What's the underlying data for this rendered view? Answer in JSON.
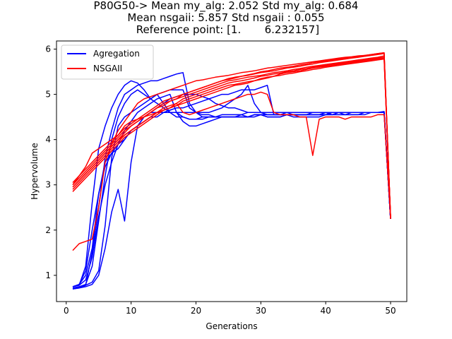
{
  "chart_data": {
    "type": "line",
    "title_lines": [
      "P80G50-> Mean my_alg: 2.052 Std my_alg: 0.684",
      "Mean nsgaii: 5.857 Std nsgaii : 0.055",
      " Reference point: [1.       6.232157]"
    ],
    "xlabel": "Generations",
    "ylabel": "Hypervolume",
    "xlim": [
      -1.5,
      52.5
    ],
    "ylim": [
      0.42,
      6.18
    ],
    "xticks": [
      0,
      10,
      20,
      30,
      40,
      50
    ],
    "yticks": [
      1,
      2,
      3,
      4,
      5,
      6
    ],
    "grid": false,
    "legend": {
      "placement": "upper-left",
      "entries": [
        {
          "label": "Agregation",
          "color": "#0000ff"
        },
        {
          "label": "NSGAII",
          "color": "#ff0000"
        }
      ]
    },
    "series_groups": [
      {
        "label": "Agregation",
        "color": "#0000ff",
        "runs": [
          [
            0.75,
            0.78,
            1.2,
            2.6,
            3.8,
            4.3,
            4.7,
            5.0,
            5.2,
            5.3,
            5.25,
            5.1,
            4.9,
            5.0,
            4.8,
            4.6,
            4.5,
            4.5,
            4.45,
            4.45,
            4.5,
            4.5,
            4.5,
            4.55,
            4.55,
            4.55,
            4.55,
            4.5,
            4.55,
            4.55,
            4.55,
            4.55,
            4.55,
            4.6,
            4.55,
            4.55,
            4.55,
            4.55,
            4.55,
            4.6,
            4.55,
            4.6,
            4.55,
            4.6,
            4.6,
            4.6,
            4.6,
            4.6,
            4.6,
            2.25
          ],
          [
            0.72,
            0.74,
            0.78,
            1.5,
            2.5,
            3.6,
            4.2,
            4.7,
            5.0,
            5.1,
            5.2,
            5.25,
            5.3,
            5.3,
            5.35,
            5.4,
            5.45,
            5.48,
            4.8,
            4.6,
            4.55,
            4.55,
            4.5,
            4.5,
            4.5,
            4.5,
            4.5,
            4.5,
            4.55,
            4.55,
            4.5,
            4.5,
            4.5,
            4.55,
            4.55,
            4.55,
            4.55,
            4.55,
            4.55,
            4.6,
            4.6,
            4.6,
            4.6,
            4.6,
            4.6,
            4.6,
            4.6,
            4.6,
            4.6,
            2.25
          ],
          [
            0.7,
            0.72,
            0.78,
            0.85,
            1.1,
            2.1,
            3.6,
            4.3,
            4.5,
            4.6,
            4.7,
            4.8,
            4.9,
            5.0,
            5.05,
            5.1,
            5.1,
            5.1,
            4.7,
            4.6,
            4.5,
            4.5,
            4.5,
            4.5,
            4.5,
            4.5,
            4.5,
            4.5,
            4.55,
            4.55,
            4.5,
            4.5,
            4.5,
            4.55,
            4.55,
            4.55,
            4.55,
            4.55,
            4.55,
            4.55,
            4.55,
            4.6,
            4.6,
            4.6,
            4.6,
            4.6,
            4.6,
            4.6,
            4.62,
            2.25
          ],
          [
            0.75,
            0.8,
            1.0,
            1.6,
            2.8,
            3.5,
            3.7,
            3.9,
            4.0,
            4.2,
            4.3,
            4.5,
            4.6,
            4.7,
            4.8,
            4.9,
            4.95,
            5.0,
            5.0,
            5.0,
            4.95,
            4.9,
            4.8,
            4.75,
            4.7,
            4.7,
            4.65,
            4.6,
            4.6,
            4.6,
            4.55,
            4.55,
            4.55,
            4.55,
            4.55,
            4.55,
            4.55,
            4.55,
            4.55,
            4.55,
            4.55,
            4.55,
            4.55,
            4.55,
            4.55,
            4.55,
            4.6,
            4.6,
            4.6,
            2.25
          ],
          [
            0.7,
            0.72,
            0.75,
            0.8,
            1.0,
            1.6,
            2.4,
            2.9,
            2.2,
            3.5,
            4.3,
            4.5,
            4.6,
            4.6,
            4.6,
            4.65,
            4.7,
            4.7,
            4.75,
            4.8,
            4.85,
            4.9,
            4.95,
            5.0,
            5.0,
            5.05,
            5.1,
            5.1,
            5.1,
            5.15,
            5.2,
            4.55,
            4.55,
            4.55,
            4.5,
            4.5,
            4.5,
            4.5,
            4.5,
            4.55,
            4.55,
            4.55,
            4.55,
            4.55,
            4.55,
            4.6,
            4.6,
            4.6,
            4.6,
            2.25
          ],
          [
            0.75,
            0.8,
            1.1,
            2.0,
            2.8,
            3.4,
            3.7,
            3.8,
            4.0,
            4.2,
            4.3,
            4.4,
            4.5,
            4.5,
            4.6,
            4.6,
            4.6,
            4.6,
            4.6,
            4.6,
            4.6,
            4.6,
            4.65,
            4.7,
            4.8,
            4.9,
            5.0,
            5.2,
            4.8,
            4.6,
            4.55,
            4.55,
            4.55,
            4.55,
            4.55,
            4.55,
            4.55,
            4.6,
            4.6,
            4.6,
            4.6,
            4.6,
            4.6,
            4.6,
            4.6,
            4.6,
            4.6,
            4.6,
            4.6,
            2.25
          ],
          [
            0.72,
            0.75,
            0.8,
            1.2,
            2.2,
            3.2,
            4.0,
            4.5,
            4.8,
            5.0,
            5.1,
            5.0,
            4.9,
            4.8,
            4.7,
            4.6,
            4.6,
            4.5,
            4.45,
            4.45,
            4.45,
            4.5,
            4.5,
            4.5,
            4.5,
            4.5,
            4.5,
            4.5,
            4.5,
            4.55,
            4.55,
            4.55,
            4.55,
            4.55,
            4.55,
            4.55,
            4.55,
            4.55,
            4.55,
            4.55,
            4.6,
            4.6,
            4.6,
            4.6,
            4.6,
            4.6,
            4.6,
            4.6,
            4.6,
            2.25
          ],
          [
            0.75,
            0.78,
            0.9,
            1.4,
            2.3,
            3.0,
            3.5,
            3.9,
            4.2,
            4.4,
            4.6,
            4.7,
            4.8,
            4.9,
            4.95,
            5.0,
            4.6,
            4.4,
            4.3,
            4.3,
            4.35,
            4.4,
            4.45,
            4.5,
            4.5,
            4.5,
            4.55,
            4.6,
            4.6,
            4.6,
            4.6,
            4.6,
            4.6,
            4.6,
            4.6,
            4.6,
            4.6,
            4.6,
            4.6,
            4.6,
            4.6,
            4.6,
            4.6,
            4.6,
            4.6,
            4.6,
            4.6,
            4.6,
            4.6,
            2.25
          ]
        ]
      },
      {
        "label": "NSGAII",
        "color": "#ff0000",
        "runs": [
          [
            2.95,
            3.1,
            3.25,
            3.4,
            3.55,
            3.7,
            3.85,
            4.0,
            4.15,
            4.3,
            4.4,
            4.5,
            4.6,
            4.7,
            4.8,
            4.85,
            4.9,
            4.95,
            5.0,
            5.05,
            5.1,
            5.15,
            5.2,
            5.25,
            5.3,
            5.32,
            5.35,
            5.38,
            5.4,
            5.42,
            5.45,
            5.48,
            5.5,
            5.52,
            5.55,
            5.57,
            5.6,
            5.62,
            5.64,
            5.66,
            5.68,
            5.7,
            5.72,
            5.74,
            5.76,
            5.78,
            5.8,
            5.82,
            5.85,
            2.25
          ],
          [
            3.0,
            3.15,
            3.3,
            3.45,
            3.6,
            3.75,
            3.9,
            4.05,
            4.2,
            4.3,
            4.4,
            4.5,
            4.6,
            4.7,
            4.75,
            4.85,
            4.9,
            5.0,
            5.05,
            5.1,
            5.15,
            5.2,
            5.25,
            5.3,
            5.33,
            5.36,
            5.4,
            5.42,
            5.45,
            5.48,
            5.5,
            5.52,
            5.55,
            5.58,
            5.6,
            5.62,
            5.65,
            5.67,
            5.7,
            5.72,
            5.74,
            5.76,
            5.78,
            5.8,
            5.82,
            5.84,
            5.86,
            5.88,
            5.9,
            2.28
          ],
          [
            2.9,
            3.05,
            3.2,
            3.35,
            3.5,
            3.65,
            3.8,
            3.95,
            4.1,
            4.2,
            4.3,
            4.4,
            4.5,
            4.6,
            4.7,
            4.75,
            4.8,
            4.9,
            4.95,
            5.0,
            5.05,
            5.1,
            5.15,
            5.2,
            5.25,
            5.28,
            5.3,
            5.33,
            5.36,
            5.4,
            5.42,
            5.45,
            5.47,
            5.5,
            5.52,
            5.55,
            5.57,
            5.6,
            5.62,
            5.64,
            5.66,
            5.68,
            5.7,
            5.72,
            5.74,
            5.76,
            5.78,
            5.8,
            5.82,
            2.3
          ],
          [
            3.05,
            3.2,
            3.35,
            3.5,
            3.65,
            3.8,
            3.95,
            4.1,
            4.25,
            4.35,
            4.45,
            4.55,
            4.65,
            4.75,
            4.85,
            4.9,
            4.95,
            5.0,
            5.05,
            5.1,
            5.15,
            5.2,
            5.25,
            5.3,
            5.35,
            5.38,
            5.4,
            5.43,
            5.46,
            5.5,
            5.52,
            5.55,
            5.58,
            5.6,
            5.62,
            5.65,
            5.67,
            5.7,
            5.72,
            5.74,
            5.76,
            5.78,
            5.8,
            5.82,
            5.84,
            5.86,
            5.88,
            5.9,
            5.92,
            2.25
          ],
          [
            2.85,
            3.0,
            3.15,
            3.3,
            3.45,
            3.6,
            3.75,
            3.9,
            4.05,
            4.15,
            4.25,
            4.35,
            4.45,
            4.55,
            4.65,
            4.7,
            4.75,
            4.85,
            4.9,
            4.95,
            5.0,
            5.05,
            5.1,
            5.15,
            5.2,
            5.22,
            5.25,
            5.28,
            5.3,
            5.33,
            5.36,
            5.4,
            5.42,
            5.45,
            5.47,
            5.5,
            5.52,
            5.55,
            5.57,
            5.6,
            5.62,
            5.64,
            5.66,
            5.68,
            5.7,
            5.72,
            5.74,
            5.76,
            5.78,
            2.3
          ],
          [
            1.55,
            1.7,
            1.75,
            1.8,
            2.5,
            3.5,
            3.9,
            4.2,
            4.4,
            4.6,
            4.8,
            4.9,
            4.95,
            5.0,
            5.05,
            5.1,
            5.15,
            5.2,
            5.25,
            5.3,
            5.32,
            5.35,
            5.38,
            5.4,
            5.42,
            5.45,
            5.48,
            5.5,
            5.52,
            5.55,
            5.58,
            5.6,
            5.62,
            5.64,
            5.66,
            5.68,
            5.7,
            5.72,
            5.74,
            5.76,
            5.78,
            5.8,
            5.82,
            5.83,
            5.85,
            5.86,
            5.88,
            5.9,
            5.92,
            2.25
          ],
          [
            3.0,
            3.2,
            3.4,
            3.7,
            3.8,
            3.9,
            4.0,
            4.1,
            4.3,
            4.4,
            4.45,
            4.5,
            4.55,
            4.6,
            4.65,
            4.7,
            4.8,
            4.6,
            4.55,
            4.6,
            4.65,
            4.7,
            4.75,
            4.8,
            4.85,
            4.9,
            4.95,
            5.0,
            5.0,
            5.05,
            5.0,
            4.6,
            4.55,
            4.55,
            4.55,
            4.5,
            4.5,
            3.65,
            4.45,
            4.5,
            4.5,
            4.5,
            4.45,
            4.5,
            4.5,
            4.5,
            4.5,
            4.55,
            4.55,
            2.3
          ],
          [
            2.95,
            3.1,
            3.25,
            3.4,
            3.55,
            3.7,
            3.85,
            4.0,
            4.1,
            4.2,
            4.3,
            4.4,
            4.5,
            4.6,
            4.65,
            4.7,
            4.75,
            4.8,
            4.85,
            4.9,
            4.95,
            5.0,
            5.05,
            5.1,
            5.15,
            5.2,
            5.22,
            5.25,
            5.3,
            5.35,
            5.38,
            5.4,
            5.45,
            5.48,
            5.5,
            5.52,
            5.55,
            5.58,
            5.6,
            5.62,
            5.64,
            5.66,
            5.68,
            5.7,
            5.72,
            5.74,
            5.76,
            5.78,
            5.8,
            2.28
          ]
        ]
      }
    ]
  }
}
